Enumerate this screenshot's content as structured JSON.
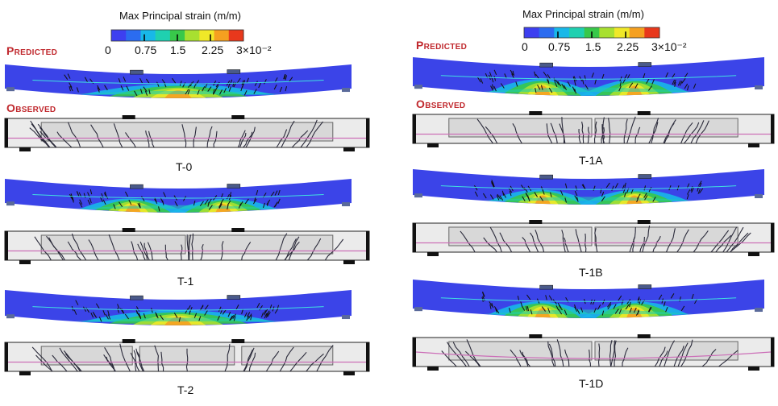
{
  "legend": {
    "title": "Max Principal strain (m/m)",
    "ticks": [
      "0",
      "0.75",
      "1.5",
      "2.25",
      "3×10⁻²"
    ],
    "colors": [
      "#3d3ff0",
      "#2b6cf0",
      "#18b8e8",
      "#1fd0b0",
      "#38c84a",
      "#a8e030",
      "#f0e828",
      "#f5a020",
      "#e8381c"
    ]
  },
  "labels": {
    "predicted": "Predicted",
    "observed": "Observed"
  },
  "colors": {
    "contour_base": "#3b44e8",
    "concrete_fill": "#ebebeb",
    "region_fill": "#d8d8d8",
    "crack": "#2a2a3a",
    "rebar_line": "#cc6fb8",
    "support": "#111111"
  },
  "specimens": [
    {
      "name": "T-0",
      "caption": "T-0"
    },
    {
      "name": "T-1",
      "caption": "T-1"
    },
    {
      "name": "T-2",
      "caption": "T-2"
    },
    {
      "name": "T-1A",
      "caption": "T-1A"
    },
    {
      "name": "T-1B",
      "caption": "T-1B"
    },
    {
      "name": "T-1D",
      "caption": "T-1D"
    }
  ]
}
